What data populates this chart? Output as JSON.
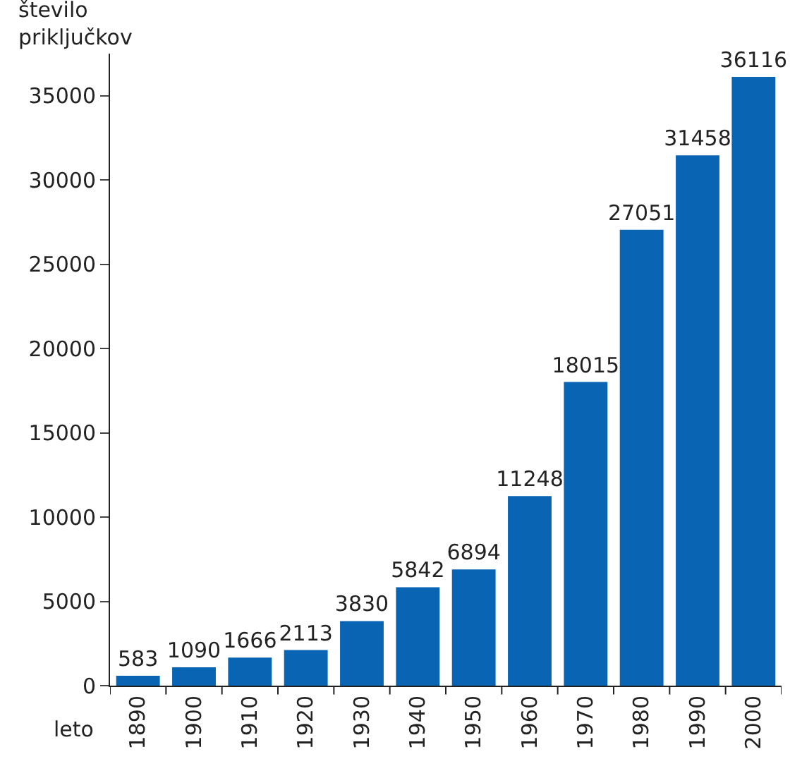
{
  "chart_data": {
    "type": "bar",
    "ylabel": "število\npriključkov",
    "xlabel": "leto",
    "categories": [
      "1890",
      "1900",
      "1910",
      "1920",
      "1930",
      "1940",
      "1950",
      "1960",
      "1970",
      "1980",
      "1990",
      "2000"
    ],
    "values": [
      583,
      1090,
      1666,
      2113,
      3830,
      5842,
      6894,
      11248,
      18015,
      27051,
      31458,
      36116
    ],
    "color": "#0a64b4",
    "ylim": [
      0,
      37500
    ],
    "yticks": [
      0,
      5000,
      10000,
      15000,
      20000,
      25000,
      30000,
      35000
    ],
    "data_labels": true
  }
}
